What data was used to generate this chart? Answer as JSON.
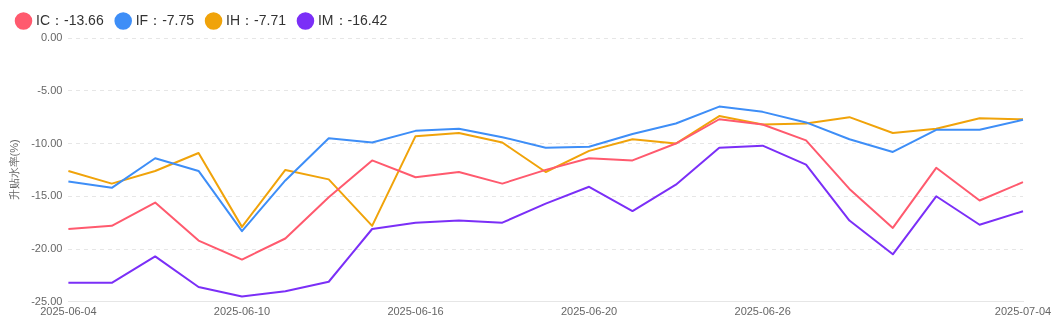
{
  "chart_data": {
    "type": "line",
    "ylabel": "升贴水率(%)",
    "categories": [
      "2025-06-04",
      null,
      null,
      null,
      "2025-06-10",
      null,
      null,
      null,
      "2025-06-16",
      null,
      null,
      null,
      "2025-06-20",
      null,
      null,
      null,
      "2025-06-26",
      null,
      null,
      null,
      null,
      null,
      "2025-07-04"
    ],
    "series": [
      {
        "name": "IC：-13.66",
        "color": "#ff5a6e",
        "values": [
          -18.1,
          -17.8,
          -15.6,
          -19.2,
          -21.0,
          -19.0,
          -15.1,
          -11.6,
          -13.2,
          -12.7,
          -13.8,
          -12.5,
          -11.4,
          -11.6,
          -10.0,
          -7.7,
          -8.2,
          -9.7,
          -14.3,
          -18.0,
          -12.3,
          -15.4,
          -13.66
        ]
      },
      {
        "name": "IF：-7.75",
        "color": "#3e8ef7",
        "values": [
          -13.6,
          -14.2,
          -11.4,
          -12.6,
          -18.3,
          -13.5,
          -9.5,
          -9.9,
          -8.8,
          -8.6,
          -9.4,
          -10.4,
          -10.3,
          -9.1,
          -8.1,
          -6.5,
          -7.0,
          -8.0,
          -9.6,
          -10.8,
          -8.7,
          -8.7,
          -7.75
        ]
      },
      {
        "name": "IH：-7.71",
        "color": "#f0a30a",
        "values": [
          -12.6,
          -13.8,
          -12.6,
          -10.9,
          -17.9,
          -12.5,
          -13.4,
          -17.8,
          -9.3,
          -9.0,
          -9.9,
          -12.7,
          -10.7,
          -9.6,
          -10.0,
          -7.4,
          -8.2,
          -8.1,
          -7.5,
          -9.0,
          -8.6,
          -7.6,
          -7.71
        ]
      },
      {
        "name": "IM：-16.42",
        "color": "#7b2ff7",
        "values": [
          -23.2,
          -23.2,
          -20.7,
          -23.6,
          -24.5,
          -24.0,
          -23.1,
          -18.1,
          -17.5,
          -17.3,
          -17.5,
          -15.7,
          -14.1,
          -16.4,
          -13.9,
          -10.4,
          -10.2,
          -12.0,
          -17.3,
          -20.5,
          -15.0,
          -17.7,
          -16.42
        ]
      }
    ],
    "ylim": [
      -25,
      0
    ],
    "yticks": [
      {
        "value": -25,
        "label": "-25.00"
      },
      {
        "value": -20,
        "label": "-20.00"
      },
      {
        "value": -15,
        "label": "-15.00"
      },
      {
        "value": -10,
        "label": "-10.00"
      },
      {
        "value": -5,
        "label": "-5.00"
      },
      {
        "value": 0,
        "label": "0.00"
      }
    ],
    "grid": "y",
    "legend": "top left",
    "marker": "none",
    "line_style": "solid"
  }
}
